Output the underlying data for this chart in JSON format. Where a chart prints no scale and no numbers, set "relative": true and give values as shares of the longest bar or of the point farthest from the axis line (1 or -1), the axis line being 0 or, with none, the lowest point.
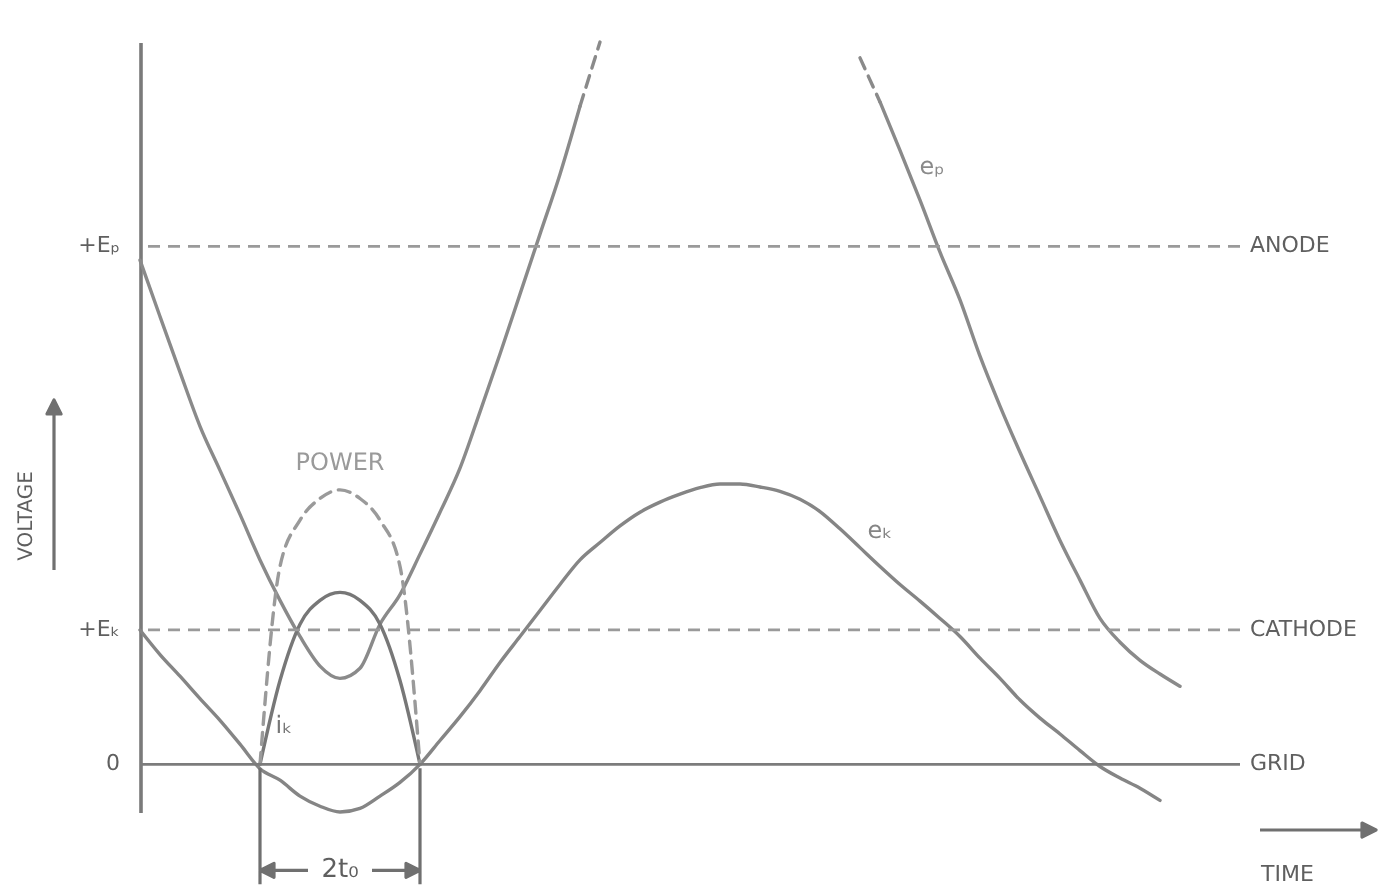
{
  "chart_data": {
    "type": "line",
    "relative": true,
    "line_style": "solid",
    "xlabel": "TIME",
    "categories": [
      null,
      null,
      null,
      null,
      null,
      null,
      null,
      null,
      null,
      null,
      null,
      null,
      null,
      null,
      null,
      null,
      null,
      null,
      null,
      null,
      null,
      null,
      null,
      null,
      null,
      null,
      null,
      null,
      null,
      null,
      null,
      null,
      null,
      null,
      null,
      null,
      null,
      null,
      null,
      null,
      null,
      null,
      null,
      null,
      null,
      null,
      null,
      null,
      null,
      null,
      null,
      null,
      null,
      null,
      null,
      null
    ],
    "series": [
      {
        "name": "eₚ",
        "color": "#8a8a8a",
        "values": [
          0.698,
          0.62,
          0.543,
          0.468,
          0.407,
          0.346,
          0.283,
          0.227,
          0.177,
          0.136,
          0.119,
          0.133,
          0.194,
          0.235,
          0.291,
          0.349,
          0.41,
          0.488,
          0.568,
          0.651,
          0.734,
          0.817,
          0.911,
          null,
          null,
          null,
          null,
          null,
          null,
          null,
          null,
          null,
          null,
          null,
          null,
          null,
          null,
          0.917,
          0.85,
          0.781,
          0.709,
          0.643,
          0.565,
          0.496,
          0.432,
          0.371,
          0.31,
          0.255,
          0.202,
          0.169,
          0.144,
          0.125,
          0.108,
          null,
          null,
          null
        ]
      },
      {
        "name": "eₖ",
        "color": "#858585",
        "values": [
          0.186,
          0.152,
          0.122,
          0.091,
          0.061,
          0.028,
          -0.006,
          -0.022,
          -0.044,
          -0.058,
          -0.066,
          -0.061,
          -0.044,
          -0.025,
          0,
          0.033,
          0.066,
          0.102,
          0.141,
          0.177,
          0.213,
          0.249,
          0.283,
          0.307,
          0.33,
          0.349,
          0.363,
          0.374,
          0.383,
          0.388,
          0.388,
          0.384,
          0.378,
          0.367,
          0.35,
          0.326,
          0.3,
          0.274,
          0.249,
          0.226,
          0.202,
          0.177,
          0.147,
          0.119,
          0.089,
          0.064,
          0.042,
          0.019,
          -0.003,
          -0.019,
          -0.033,
          -0.05,
          null,
          null,
          null,
          null
        ]
      },
      {
        "name": "iₖ",
        "color": "#777777",
        "values": [
          null,
          null,
          null,
          null,
          null,
          null,
          0,
          0.116,
          0.194,
          0.227,
          0.238,
          0.227,
          0.194,
          0.116,
          0,
          null,
          null,
          null,
          null,
          null,
          null,
          null,
          null,
          null,
          null,
          null,
          null,
          null,
          null,
          null,
          null,
          null,
          null,
          null,
          null,
          null,
          null,
          null,
          null,
          null,
          null,
          null,
          null,
          null,
          null,
          null,
          null,
          null,
          null,
          null,
          null,
          null,
          null,
          null,
          null,
          null
        ]
      },
      {
        "name": "POWER",
        "color": "#9a9a9a",
        "line_style": "dashed",
        "values": [
          null,
          null,
          null,
          null,
          null,
          null,
          0,
          0.274,
          0.338,
          0.368,
          0.38,
          0.368,
          0.338,
          0.274,
          0,
          null,
          null,
          null,
          null,
          null,
          null,
          null,
          null,
          null,
          null,
          null,
          null,
          null,
          null,
          null,
          null,
          null,
          null,
          null,
          null,
          null,
          null,
          null,
          null,
          null,
          null,
          null,
          null,
          null,
          null,
          null,
          null,
          null,
          null,
          null,
          null,
          null,
          null,
          null,
          null,
          null
        ]
      },
      {
        "color": "#8a8a8a",
        "line_style": "dashed",
        "values": [
          null,
          null,
          null,
          null,
          null,
          null,
          null,
          null,
          null,
          null,
          null,
          null,
          null,
          null,
          null,
          null,
          null,
          null,
          null,
          null,
          null,
          null,
          0.911,
          1.0,
          null,
          null,
          null,
          null,
          null,
          null,
          null,
          null,
          null,
          null,
          null,
          null,
          null,
          null,
          null,
          null,
          null,
          null,
          null,
          null,
          null,
          null,
          null,
          null,
          null,
          null,
          null,
          null,
          null,
          null,
          null,
          null
        ]
      },
      {
        "color": "#8a8a8a",
        "line_style": "dashed",
        "values": [
          null,
          null,
          null,
          null,
          null,
          null,
          null,
          null,
          null,
          null,
          null,
          null,
          null,
          null,
          null,
          null,
          null,
          null,
          null,
          null,
          null,
          null,
          null,
          null,
          null,
          null,
          null,
          null,
          null,
          null,
          null,
          null,
          null,
          null,
          null,
          null,
          0.978,
          0.917,
          null,
          null,
          null,
          null,
          null,
          null,
          null,
          null,
          null,
          null,
          null,
          null,
          null,
          null,
          null,
          null,
          null,
          null
        ]
      }
    ],
    "ref_lines": [
      {
        "axis": "y",
        "value": 0.717,
        "label": "ANODE",
        "line_style": "dashed",
        "color": "#9a9a9a"
      },
      {
        "axis": "y",
        "value": 0.186,
        "label": "CATHODE",
        "line_style": "dashed",
        "color": "#9a9a9a"
      },
      {
        "axis": "y",
        "value": 0,
        "label": "GRID",
        "line_style": "solid",
        "color": "#7c7c7c"
      }
    ],
    "annotations": [
      "+Eₚ",
      "+Eₖ",
      "0",
      "2t₀",
      "VOLTAGE"
    ]
  }
}
